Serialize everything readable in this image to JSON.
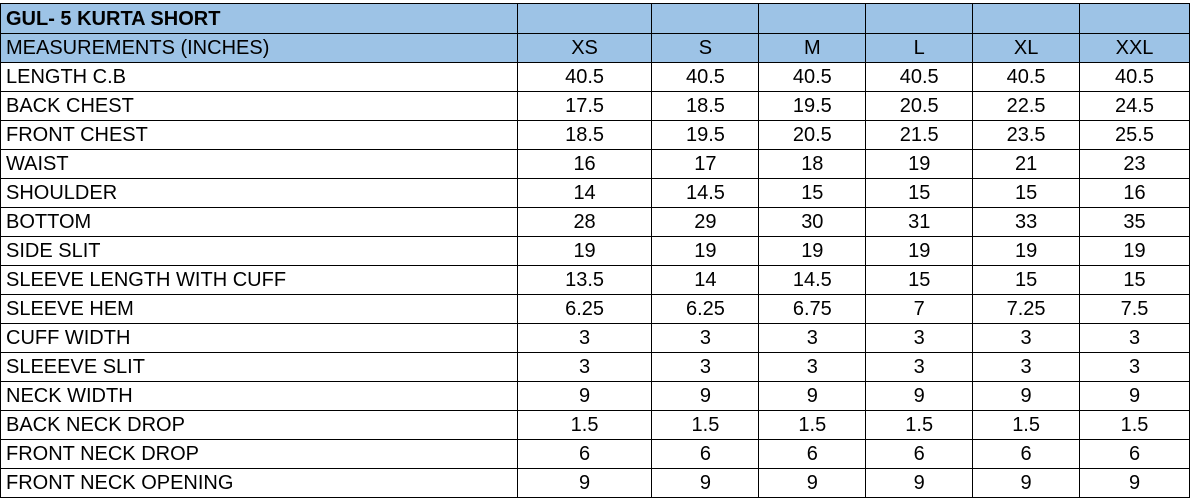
{
  "title": "GUL- 5 KURTA SHORT",
  "header": {
    "label": "MEASUREMENTS (INCHES)",
    "sizes": [
      "XS",
      "S",
      "M",
      "L",
      "XL",
      "XXL"
    ]
  },
  "header_fill_color": "#9dc3e6",
  "rows": [
    {
      "label": "LENGTH C.B",
      "values": [
        "40.5",
        "40.5",
        "40.5",
        "40.5",
        "40.5",
        "40.5"
      ]
    },
    {
      "label": "BACK CHEST",
      "values": [
        "17.5",
        "18.5",
        "19.5",
        "20.5",
        "22.5",
        "24.5"
      ]
    },
    {
      "label": "FRONT CHEST",
      "values": [
        "18.5",
        "19.5",
        "20.5",
        "21.5",
        "23.5",
        "25.5"
      ]
    },
    {
      "label": "WAIST",
      "values": [
        "16",
        "17",
        "18",
        "19",
        "21",
        "23"
      ]
    },
    {
      "label": "SHOULDER",
      "values": [
        "14",
        "14.5",
        "15",
        "15",
        "15",
        "16"
      ]
    },
    {
      "label": "BOTTOM",
      "values": [
        "28",
        "29",
        "30",
        "31",
        "33",
        "35"
      ]
    },
    {
      "label": "SIDE SLIT",
      "values": [
        "19",
        "19",
        "19",
        "19",
        "19",
        "19"
      ]
    },
    {
      "label": "SLEEVE LENGTH WITH CUFF",
      "values": [
        "13.5",
        "14",
        "14.5",
        "15",
        "15",
        "15"
      ]
    },
    {
      "label": "SLEEVE HEM",
      "values": [
        "6.25",
        "6.25",
        "6.75",
        "7",
        "7.25",
        "7.5"
      ]
    },
    {
      "label": "CUFF WIDTH",
      "values": [
        "3",
        "3",
        "3",
        "3",
        "3",
        "3"
      ]
    },
    {
      "label": "SLEEEVE SLIT",
      "values": [
        "3",
        "3",
        "3",
        "3",
        "3",
        "3"
      ]
    },
    {
      "label": "NECK WIDTH",
      "values": [
        "9",
        "9",
        "9",
        "9",
        "9",
        "9"
      ]
    },
    {
      "label": "BACK NECK DROP",
      "values": [
        "1.5",
        "1.5",
        "1.5",
        "1.5",
        "1.5",
        "1.5"
      ]
    },
    {
      "label": "FRONT NECK DROP",
      "values": [
        "6",
        "6",
        "6",
        "6",
        "6",
        "6"
      ]
    },
    {
      "label": "FRONT NECK OPENING",
      "values": [
        "9",
        "9",
        "9",
        "9",
        "9",
        "9"
      ]
    }
  ]
}
